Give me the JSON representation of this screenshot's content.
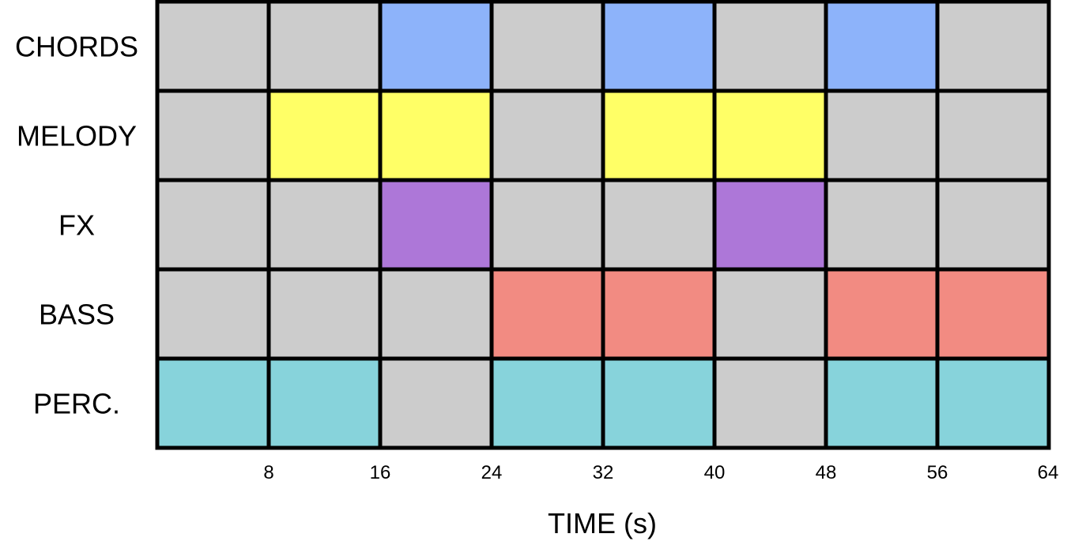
{
  "chart_data": {
    "type": "heatmap",
    "xlabel": "TIME (s)",
    "x_ticks": [
      8,
      16,
      24,
      32,
      40,
      48,
      56,
      64
    ],
    "xlim": [
      0,
      64
    ],
    "segment_length": 8,
    "tracks": [
      "CHORDS",
      "MELODY",
      "FX",
      "BASS",
      "PERC."
    ],
    "track_colors": {
      "CHORDS": "#8DB3FA",
      "MELODY": "#FFFF66",
      "FX": "#AD77D8",
      "BASS": "#F28B82",
      "PERC.": "#87D3DB"
    },
    "inactive_color": "#CCCCCC",
    "active": [
      [
        0,
        0,
        1,
        0,
        1,
        0,
        1,
        0
      ],
      [
        0,
        1,
        1,
        0,
        1,
        1,
        0,
        0
      ],
      [
        0,
        0,
        1,
        0,
        0,
        1,
        0,
        0
      ],
      [
        0,
        0,
        0,
        1,
        1,
        0,
        1,
        1
      ],
      [
        1,
        1,
        0,
        1,
        1,
        0,
        1,
        1
      ]
    ]
  }
}
